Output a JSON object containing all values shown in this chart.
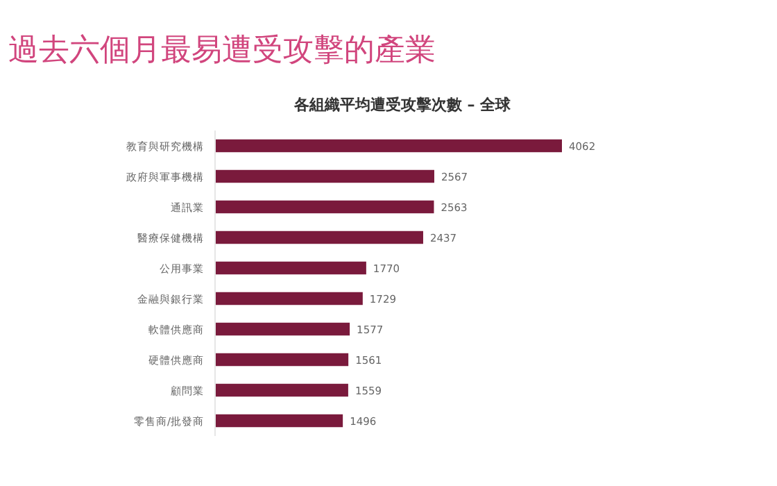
{
  "chart_data": {
    "type": "bar",
    "orientation": "horizontal",
    "title": "過去六個月最易遭受攻擊的產業",
    "subtitle": "各組織平均遭受攻擊次數 – 全球",
    "categories": [
      "教育與研究機構",
      "政府與軍事機構",
      "通訊業",
      "醫療保健機構",
      "公用事業",
      "金融與銀行業",
      "軟體供應商",
      "硬體供應商",
      "顧問業",
      "零售商/批發商"
    ],
    "values": [
      4062,
      2567,
      2563,
      2437,
      1770,
      1729,
      1577,
      1561,
      1559,
      1496
    ],
    "color": "#7a1a3c",
    "data_labels": true
  }
}
